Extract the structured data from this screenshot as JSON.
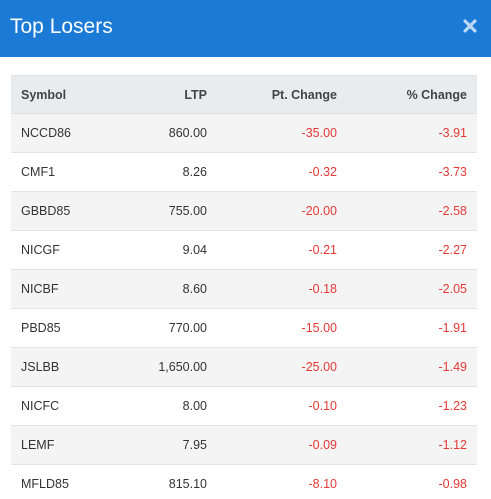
{
  "modal": {
    "title": "Top Losers",
    "close_icon": "close-icon",
    "header_color": "#1a7ad6"
  },
  "table": {
    "headers": {
      "symbol": "Symbol",
      "ltp": "LTP",
      "pt_change": "Pt. Change",
      "pct_change": "% Change"
    },
    "negative_color": "#e53935",
    "rows": [
      {
        "symbol": "NCCD86",
        "ltp": "860.00",
        "pt_change": "-35.00",
        "pct_change": "-3.91"
      },
      {
        "symbol": "CMF1",
        "ltp": "8.26",
        "pt_change": "-0.32",
        "pct_change": "-3.73"
      },
      {
        "symbol": "GBBD85",
        "ltp": "755.00",
        "pt_change": "-20.00",
        "pct_change": "-2.58"
      },
      {
        "symbol": "NICGF",
        "ltp": "9.04",
        "pt_change": "-0.21",
        "pct_change": "-2.27"
      },
      {
        "symbol": "NICBF",
        "ltp": "8.60",
        "pt_change": "-0.18",
        "pct_change": "-2.05"
      },
      {
        "symbol": "PBD85",
        "ltp": "770.00",
        "pt_change": "-15.00",
        "pct_change": "-1.91"
      },
      {
        "symbol": "JSLBB",
        "ltp": "1,650.00",
        "pt_change": "-25.00",
        "pct_change": "-1.49"
      },
      {
        "symbol": "NICFC",
        "ltp": "8.00",
        "pt_change": "-0.10",
        "pct_change": "-1.23"
      },
      {
        "symbol": "LEMF",
        "ltp": "7.95",
        "pt_change": "-0.09",
        "pct_change": "-1.12"
      },
      {
        "symbol": "MFLD85",
        "ltp": "815.10",
        "pt_change": "-8.10",
        "pct_change": "-0.98"
      }
    ]
  }
}
